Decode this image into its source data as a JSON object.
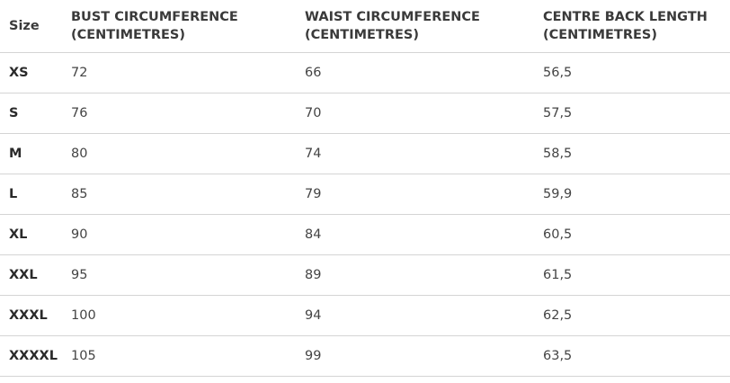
{
  "headers": [
    "Size",
    "BUST CIRCUMFERENCE (CENTIMETRES)",
    "WAIST CIRCUMFERENCE (CENTIMETRES)",
    "CENTRE BACK LENGTH (CENTIMETRES)"
  ],
  "rows": [
    [
      "XS",
      "72",
      "66",
      "56,5"
    ],
    [
      "S",
      "76",
      "70",
      "57,5"
    ],
    [
      "M",
      "80",
      "74",
      "58,5"
    ],
    [
      "L",
      "85",
      "79",
      "59,9"
    ],
    [
      "XL",
      "90",
      "84",
      "60,5"
    ],
    [
      "XXL",
      "95",
      "89",
      "61,5"
    ],
    [
      "XXXL",
      "100",
      "94",
      "62,5"
    ],
    [
      "XXXXL",
      "105",
      "99",
      "63,5"
    ]
  ]
}
